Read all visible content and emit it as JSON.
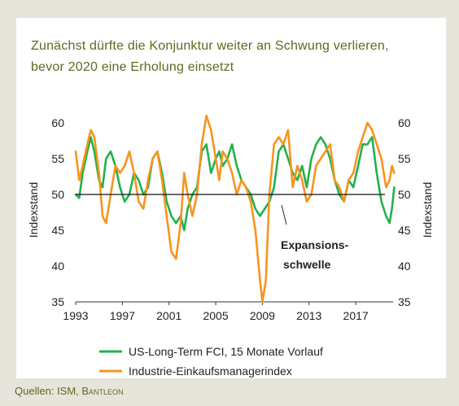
{
  "title_lines": [
    "Zunächst dürfte die Konjunktur weiter an Schwung verlieren,",
    "bevor 2020 eine Erholung einsetzt"
  ],
  "source_label": "Quellen: ISM, ",
  "source_brand": "Bantleon",
  "colors": {
    "green": "#22b14c",
    "orange": "#f7941d",
    "title": "#5b6b1f"
  },
  "chart_data": {
    "type": "line",
    "ylabel_left": "Indexstand",
    "ylabel_right": "Indexstand",
    "xlim": [
      1993,
      2020.2
    ],
    "ylim": [
      35,
      60
    ],
    "x_ticks": [
      "1993",
      "1997",
      "2001",
      "2005",
      "2009",
      "2013",
      "2017"
    ],
    "y_ticks": [
      "35",
      "40",
      "45",
      "50",
      "55",
      "60"
    ],
    "reference_line": 50,
    "annotation": [
      "Expansions-",
      "schwelle"
    ],
    "series": [
      {
        "name": "US-Long-Term FCI, 15 Monate Vorlauf",
        "color": "#22b14c",
        "points": [
          [
            1993,
            50
          ],
          [
            1993.3,
            49.5
          ],
          [
            1993.6,
            53
          ],
          [
            1994,
            56
          ],
          [
            1994.3,
            58
          ],
          [
            1994.6,
            56
          ],
          [
            1995,
            52
          ],
          [
            1995.3,
            51
          ],
          [
            1995.6,
            55
          ],
          [
            1996,
            56
          ],
          [
            1996.4,
            54
          ],
          [
            1996.8,
            51
          ],
          [
            1997.2,
            49
          ],
          [
            1997.6,
            50
          ],
          [
            1998,
            53
          ],
          [
            1998.4,
            52
          ],
          [
            1998.8,
            50
          ],
          [
            1999.2,
            51
          ],
          [
            1999.6,
            55
          ],
          [
            2000,
            56
          ],
          [
            2000.4,
            53
          ],
          [
            2000.8,
            49
          ],
          [
            2001.2,
            47
          ],
          [
            2001.6,
            46
          ],
          [
            2002,
            47
          ],
          [
            2002.3,
            45
          ],
          [
            2002.6,
            48
          ],
          [
            2003,
            50
          ],
          [
            2003.4,
            51
          ],
          [
            2003.8,
            56
          ],
          [
            2004.2,
            57
          ],
          [
            2004.6,
            53
          ],
          [
            2005,
            55
          ],
          [
            2005.3,
            56
          ],
          [
            2005.6,
            54
          ],
          [
            2006,
            55
          ],
          [
            2006.4,
            57
          ],
          [
            2006.8,
            54
          ],
          [
            2007.2,
            52
          ],
          [
            2007.6,
            51
          ],
          [
            2008,
            50
          ],
          [
            2008.4,
            48
          ],
          [
            2008.8,
            47
          ],
          [
            2009.2,
            48
          ],
          [
            2009.6,
            49
          ],
          [
            2010,
            51
          ],
          [
            2010.4,
            56
          ],
          [
            2010.8,
            57
          ],
          [
            2011.2,
            55
          ],
          [
            2011.6,
            53
          ],
          [
            2012,
            52
          ],
          [
            2012.4,
            54
          ],
          [
            2012.8,
            51
          ],
          [
            2013.2,
            55
          ],
          [
            2013.6,
            57
          ],
          [
            2014,
            58
          ],
          [
            2014.4,
            57
          ],
          [
            2014.8,
            55
          ],
          [
            2015.2,
            52
          ],
          [
            2015.6,
            50
          ],
          [
            2016,
            49
          ],
          [
            2016.4,
            52
          ],
          [
            2016.8,
            51
          ],
          [
            2017.2,
            54
          ],
          [
            2017.6,
            57
          ],
          [
            2018,
            57
          ],
          [
            2018.4,
            58
          ],
          [
            2018.8,
            53
          ],
          [
            2019.2,
            49
          ],
          [
            2019.6,
            47
          ],
          [
            2019.9,
            46
          ],
          [
            2020.1,
            48
          ],
          [
            2020.3,
            51
          ]
        ]
      },
      {
        "name": "Industrie-Einkaufsmanagerindex",
        "color": "#f7941d",
        "points": [
          [
            1993,
            56
          ],
          [
            1993.3,
            52
          ],
          [
            1993.6,
            54
          ],
          [
            1994,
            57
          ],
          [
            1994.3,
            59
          ],
          [
            1994.6,
            58
          ],
          [
            1995,
            53
          ],
          [
            1995.3,
            47
          ],
          [
            1995.6,
            46
          ],
          [
            1996,
            50
          ],
          [
            1996.4,
            54
          ],
          [
            1996.8,
            53
          ],
          [
            1997.2,
            54
          ],
          [
            1997.6,
            56
          ],
          [
            1998,
            53
          ],
          [
            1998.4,
            49
          ],
          [
            1998.8,
            48
          ],
          [
            1999.2,
            52
          ],
          [
            1999.6,
            55
          ],
          [
            2000,
            56
          ],
          [
            2000.4,
            52
          ],
          [
            2000.8,
            47
          ],
          [
            2001.2,
            42
          ],
          [
            2001.6,
            41
          ],
          [
            2002,
            46
          ],
          [
            2002.3,
            53
          ],
          [
            2002.6,
            50
          ],
          [
            2003,
            47
          ],
          [
            2003.4,
            50
          ],
          [
            2003.8,
            57
          ],
          [
            2004.2,
            61
          ],
          [
            2004.6,
            59
          ],
          [
            2005,
            55
          ],
          [
            2005.3,
            52
          ],
          [
            2005.6,
            56
          ],
          [
            2006,
            55
          ],
          [
            2006.4,
            53
          ],
          [
            2006.8,
            50
          ],
          [
            2007.2,
            52
          ],
          [
            2007.6,
            51
          ],
          [
            2008,
            49
          ],
          [
            2008.4,
            45
          ],
          [
            2008.8,
            38
          ],
          [
            2009,
            35
          ],
          [
            2009.3,
            38
          ],
          [
            2009.6,
            50
          ],
          [
            2010,
            57
          ],
          [
            2010.4,
            58
          ],
          [
            2010.8,
            57
          ],
          [
            2011.2,
            59
          ],
          [
            2011.6,
            51
          ],
          [
            2012,
            54
          ],
          [
            2012.4,
            52
          ],
          [
            2012.8,
            49
          ],
          [
            2013.2,
            50
          ],
          [
            2013.6,
            54
          ],
          [
            2014,
            55
          ],
          [
            2014.4,
            56
          ],
          [
            2014.8,
            57
          ],
          [
            2015.2,
            52
          ],
          [
            2015.6,
            51
          ],
          [
            2016,
            49
          ],
          [
            2016.4,
            52
          ],
          [
            2016.8,
            53
          ],
          [
            2017.2,
            56
          ],
          [
            2017.6,
            58
          ],
          [
            2018,
            60
          ],
          [
            2018.4,
            59
          ],
          [
            2018.8,
            57
          ],
          [
            2019.2,
            55
          ],
          [
            2019.6,
            51
          ],
          [
            2019.9,
            52
          ],
          [
            2020.1,
            54
          ],
          [
            2020.3,
            53
          ]
        ]
      }
    ]
  }
}
